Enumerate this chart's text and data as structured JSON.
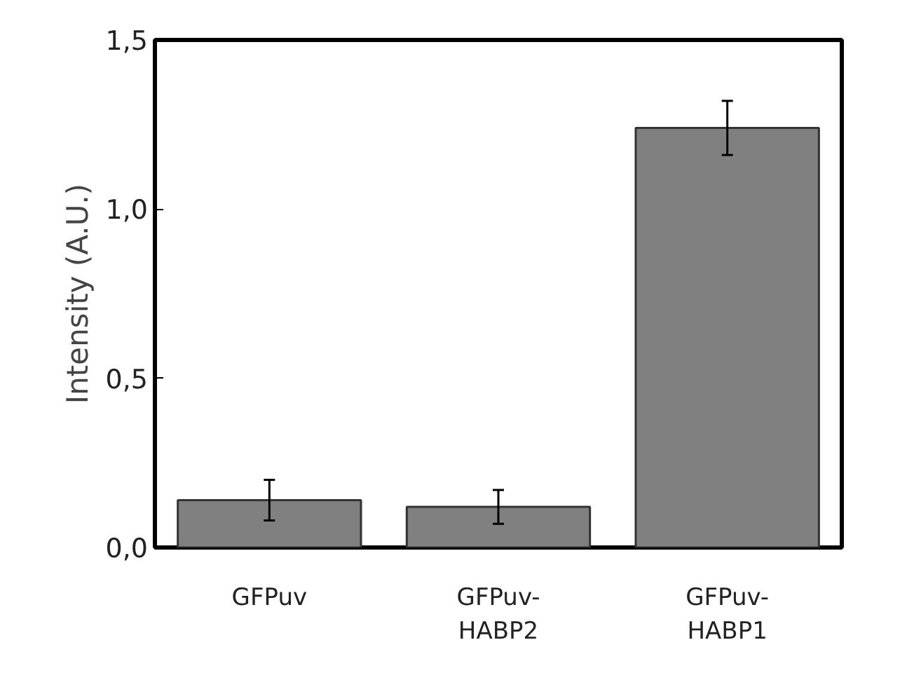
{
  "chart_data": {
    "type": "bar",
    "ylabel": "Intensity (A.U.)",
    "categories": [
      "GFPuv",
      "GFPuv-\nHABP2",
      "GFPuv-\nHABP1"
    ],
    "values": [
      0.14,
      0.12,
      1.24
    ],
    "errors": [
      0.06,
      0.05,
      0.08
    ],
    "color": "#808080",
    "ylim": [
      0,
      1.5
    ],
    "yticks": [
      {
        "value": 0,
        "label": "0,0"
      },
      {
        "value": 0.5,
        "label": "0,5"
      },
      {
        "value": 1.0,
        "label": "1,0"
      },
      {
        "value": 1.5,
        "label": "1,5"
      }
    ],
    "grid": false
  }
}
